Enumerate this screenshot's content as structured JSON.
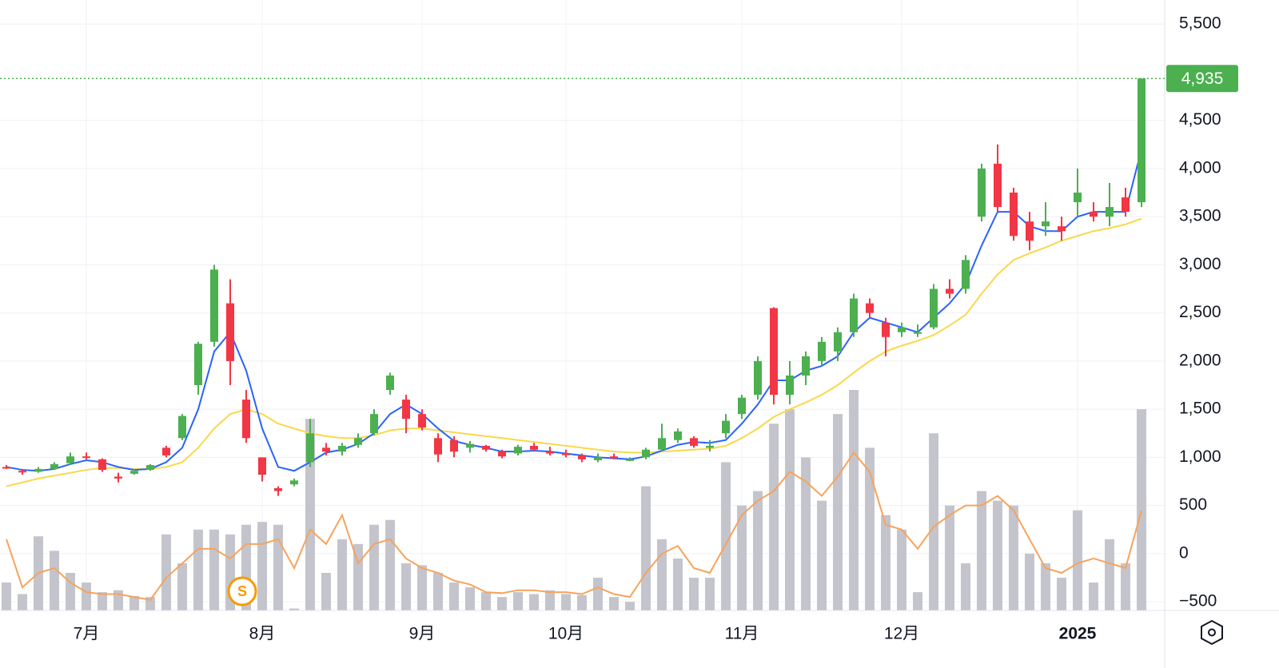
{
  "chart_data": {
    "type": "candlestick",
    "ylim": [
      -590,
      5750
    ],
    "yticks": [
      {
        "value": 5500,
        "label": "5,500"
      },
      {
        "value": 4500,
        "label": "4,500"
      },
      {
        "value": 4000,
        "label": "4,000"
      },
      {
        "value": 3500,
        "label": "3,500"
      },
      {
        "value": 3000,
        "label": "3,000"
      },
      {
        "value": 2500,
        "label": "2,500"
      },
      {
        "value": 2000,
        "label": "2,000"
      },
      {
        "value": 1500,
        "label": "1,500"
      },
      {
        "value": 1000,
        "label": "1,000"
      },
      500,
      0,
      {
        "value": -500,
        "label": "−500"
      }
    ],
    "grid": true,
    "categories": [
      null,
      null,
      null,
      null,
      null,
      "7月",
      null,
      null,
      null,
      null,
      null,
      null,
      null,
      null,
      null,
      null,
      "8月",
      null,
      null,
      null,
      null,
      null,
      null,
      null,
      null,
      null,
      "9月",
      null,
      null,
      null,
      null,
      null,
      null,
      null,
      null,
      "10月",
      null,
      null,
      null,
      null,
      null,
      null,
      null,
      null,
      null,
      null,
      "11月",
      null,
      null,
      null,
      null,
      null,
      null,
      null,
      null,
      null,
      "12月",
      null,
      null,
      null,
      null,
      null,
      null,
      null,
      null,
      null,
      null,
      "2025",
      null,
      null,
      null,
      null
    ],
    "up_color": "#4caf50",
    "down_color": "#f23645",
    "open": [
      900,
      860,
      850,
      880,
      940,
      1010,
      980,
      800,
      830,
      870,
      1100,
      1200,
      1750,
      2200,
      2600,
      1600,
      1000,
      680,
      720,
      950,
      1100,
      1060,
      1130,
      1250,
      1700,
      1600,
      1450,
      1200,
      1180,
      1100,
      1120,
      1060,
      1040,
      1120,
      1060,
      1040,
      1020,
      970,
      1010,
      980,
      1000,
      1080,
      1180,
      1200,
      1100,
      1250,
      1450,
      1650,
      2550,
      1650,
      1850,
      2000,
      2100,
      2300,
      2600,
      2400,
      2300,
      2300,
      2350,
      2750,
      2750,
      3500,
      4050,
      3750,
      3450,
      3400,
      3400,
      3650,
      3550,
      3500,
      3700,
      3650
    ],
    "high": [
      920,
      880,
      900,
      950,
      1050,
      1050,
      990,
      840,
      880,
      930,
      1120,
      1450,
      2200,
      3000,
      2850,
      1700,
      1000,
      700,
      780,
      1400,
      1150,
      1150,
      1250,
      1500,
      1880,
      1650,
      1500,
      1250,
      1220,
      1170,
      1130,
      1080,
      1130,
      1150,
      1110,
      1080,
      1040,
      1040,
      1040,
      1000,
      1100,
      1350,
      1300,
      1220,
      1180,
      1450,
      1650,
      2050,
      2560,
      2000,
      2100,
      2250,
      2350,
      2700,
      2650,
      2450,
      2400,
      2380,
      2800,
      2850,
      3100,
      4050,
      4250,
      3800,
      3550,
      3650,
      3500,
      4000,
      3650,
      3850,
      3800,
      4935
    ],
    "low": [
      880,
      820,
      840,
      870,
      920,
      980,
      850,
      740,
      820,
      860,
      1000,
      1180,
      1650,
      2150,
      1750,
      1150,
      750,
      600,
      700,
      900,
      1020,
      1020,
      1100,
      1230,
      1650,
      1250,
      1280,
      950,
      1000,
      1050,
      1060,
      990,
      1020,
      1060,
      1020,
      1000,
      950,
      950,
      980,
      960,
      980,
      1060,
      1150,
      1100,
      1060,
      1200,
      1400,
      1600,
      1550,
      1550,
      1750,
      1950,
      2000,
      2250,
      2450,
      2050,
      2250,
      2250,
      2330,
      2650,
      2700,
      3450,
      3550,
      3250,
      3150,
      3300,
      3250,
      3500,
      3450,
      3400,
      3500,
      3600
    ],
    "close": [
      890,
      850,
      880,
      930,
      1010,
      1000,
      870,
      780,
      860,
      920,
      1020,
      1430,
      2180,
      2950,
      2000,
      1200,
      820,
      650,
      760,
      1250,
      1060,
      1120,
      1200,
      1450,
      1850,
      1400,
      1310,
      1030,
      1060,
      1140,
      1080,
      1010,
      1110,
      1080,
      1040,
      1030,
      980,
      1000,
      990,
      980,
      1080,
      1200,
      1270,
      1120,
      1120,
      1380,
      1620,
      2000,
      1650,
      1850,
      2050,
      2200,
      2300,
      2650,
      2500,
      2250,
      2350,
      2300,
      2750,
      2700,
      3050,
      4000,
      3600,
      3300,
      3250,
      3450,
      3350,
      3750,
      3500,
      3600,
      3550,
      4935
    ],
    "volume": {
      "color": "#c4c4cc",
      "values": [
        -300,
        -420,
        180,
        30,
        -200,
        -300,
        -400,
        -380,
        -440,
        -450,
        200,
        -100,
        250,
        250,
        200,
        300,
        330,
        300,
        -570,
        1400,
        -200,
        150,
        100,
        300,
        350,
        -100,
        -120,
        -200,
        -300,
        -350,
        -400,
        -450,
        -400,
        -420,
        -380,
        -420,
        -430,
        -250,
        -450,
        -500,
        700,
        150,
        -50,
        -250,
        -250,
        950,
        500,
        650,
        1350,
        1500,
        1000,
        550,
        1450,
        1700,
        1100,
        400,
        250,
        -400,
        1250,
        500,
        -100,
        650,
        550,
        500,
        0,
        -100,
        -250,
        450,
        -300,
        150,
        -100,
        1500
      ]
    },
    "lines": [
      {
        "color": "#f7a35c",
        "values": [
          150,
          -350,
          -200,
          -150,
          -300,
          -400,
          -420,
          -420,
          -450,
          -480,
          -250,
          -100,
          50,
          50,
          -50,
          100,
          100,
          150,
          -150,
          250,
          100,
          400,
          -100,
          100,
          150,
          -50,
          -150,
          -200,
          -280,
          -320,
          -400,
          -410,
          -380,
          -380,
          -400,
          -400,
          -420,
          -350,
          -420,
          -450,
          -200,
          0,
          80,
          -150,
          -200,
          100,
          400,
          550,
          650,
          850,
          750,
          600,
          800,
          1050,
          850,
          300,
          250,
          50,
          280,
          400,
          500,
          500,
          600,
          450,
          150,
          -150,
          -200,
          -100,
          -50,
          -100,
          -150,
          450
        ]
      },
      {
        "color": "#f9d84a",
        "values": [
          700,
          740,
          780,
          810,
          840,
          870,
          890,
          890,
          880,
          880,
          900,
          950,
          1100,
          1300,
          1450,
          1500,
          1450,
          1350,
          1300,
          1250,
          1220,
          1200,
          1200,
          1230,
          1280,
          1300,
          1300,
          1280,
          1260,
          1240,
          1220,
          1200,
          1180,
          1160,
          1140,
          1120,
          1100,
          1080,
          1060,
          1050,
          1050,
          1060,
          1070,
          1080,
          1090,
          1120,
          1200,
          1300,
          1420,
          1500,
          1570,
          1650,
          1750,
          1880,
          2000,
          2100,
          2160,
          2210,
          2270,
          2370,
          2480,
          2700,
          2900,
          3050,
          3120,
          3180,
          3250,
          3300,
          3350,
          3380,
          3420,
          3480
        ]
      },
      {
        "color": "#2962ff",
        "values": [
          900,
          870,
          860,
          880,
          930,
          970,
          950,
          900,
          870,
          880,
          950,
          1100,
          1500,
          2100,
          2300,
          1900,
          1300,
          900,
          860,
          950,
          1050,
          1080,
          1140,
          1250,
          1450,
          1550,
          1450,
          1300,
          1170,
          1130,
          1100,
          1060,
          1060,
          1070,
          1060,
          1040,
          1020,
          1000,
          990,
          980,
          1010,
          1070,
          1130,
          1160,
          1150,
          1180,
          1350,
          1550,
          1800,
          1800,
          1900,
          1950,
          2050,
          2300,
          2450,
          2400,
          2350,
          2300,
          2450,
          2600,
          2800,
          3200,
          3550,
          3550,
          3400,
          3350,
          3350,
          3500,
          3550,
          3550,
          3550,
          4200
        ]
      }
    ],
    "last_price": {
      "value": 4935,
      "label": "4,935"
    },
    "marker_label": "S"
  }
}
